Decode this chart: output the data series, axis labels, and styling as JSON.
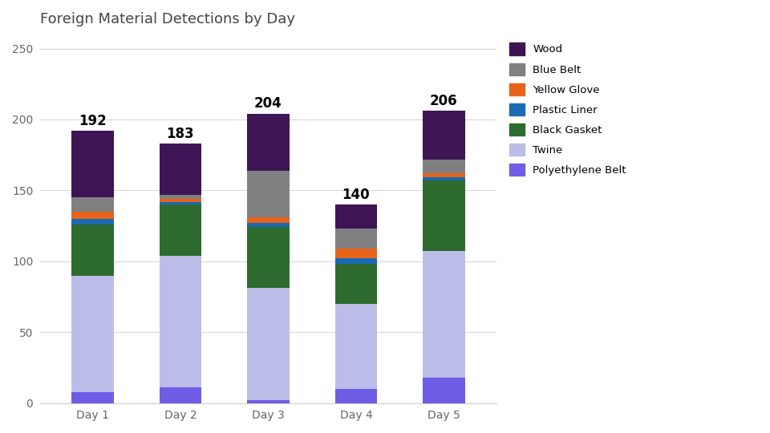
{
  "title": "Foreign Material Detections by Day",
  "categories": [
    "Day 1",
    "Day 2",
    "Day 3",
    "Day 4",
    "Day 5"
  ],
  "totals": [
    192,
    183,
    204,
    140,
    206
  ],
  "series": [
    {
      "label": "Wood",
      "color": "#3d1555",
      "values": [
        47,
        36,
        40,
        17,
        34
      ]
    },
    {
      "label": "Blue Belt",
      "color": "#808080",
      "values": [
        10,
        3,
        33,
        14,
        10
      ]
    },
    {
      "label": "Yellow Glove",
      "color": "#e8631a",
      "values": [
        5,
        2,
        4,
        7,
        3
      ]
    },
    {
      "label": "Plastic Liner",
      "color": "#1a6ab5",
      "values": [
        4,
        2,
        3,
        4,
        2
      ]
    },
    {
      "label": "Black Gasket",
      "color": "#2e6b2e",
      "values": [
        36,
        36,
        43,
        28,
        50
      ]
    },
    {
      "label": "Twine",
      "color": "#bbbde8",
      "values": [
        82,
        93,
        79,
        60,
        89
      ]
    },
    {
      "label": "Polyethylene Belt",
      "color": "#6f5de8",
      "values": [
        8,
        11,
        2,
        10,
        18
      ]
    }
  ],
  "ylim": [
    0,
    260
  ],
  "yticks": [
    0,
    50,
    100,
    150,
    200,
    250
  ],
  "background_color": "#ffffff",
  "title_fontsize": 13,
  "label_fontsize": 12,
  "tick_fontsize": 10,
  "bar_width": 0.48
}
